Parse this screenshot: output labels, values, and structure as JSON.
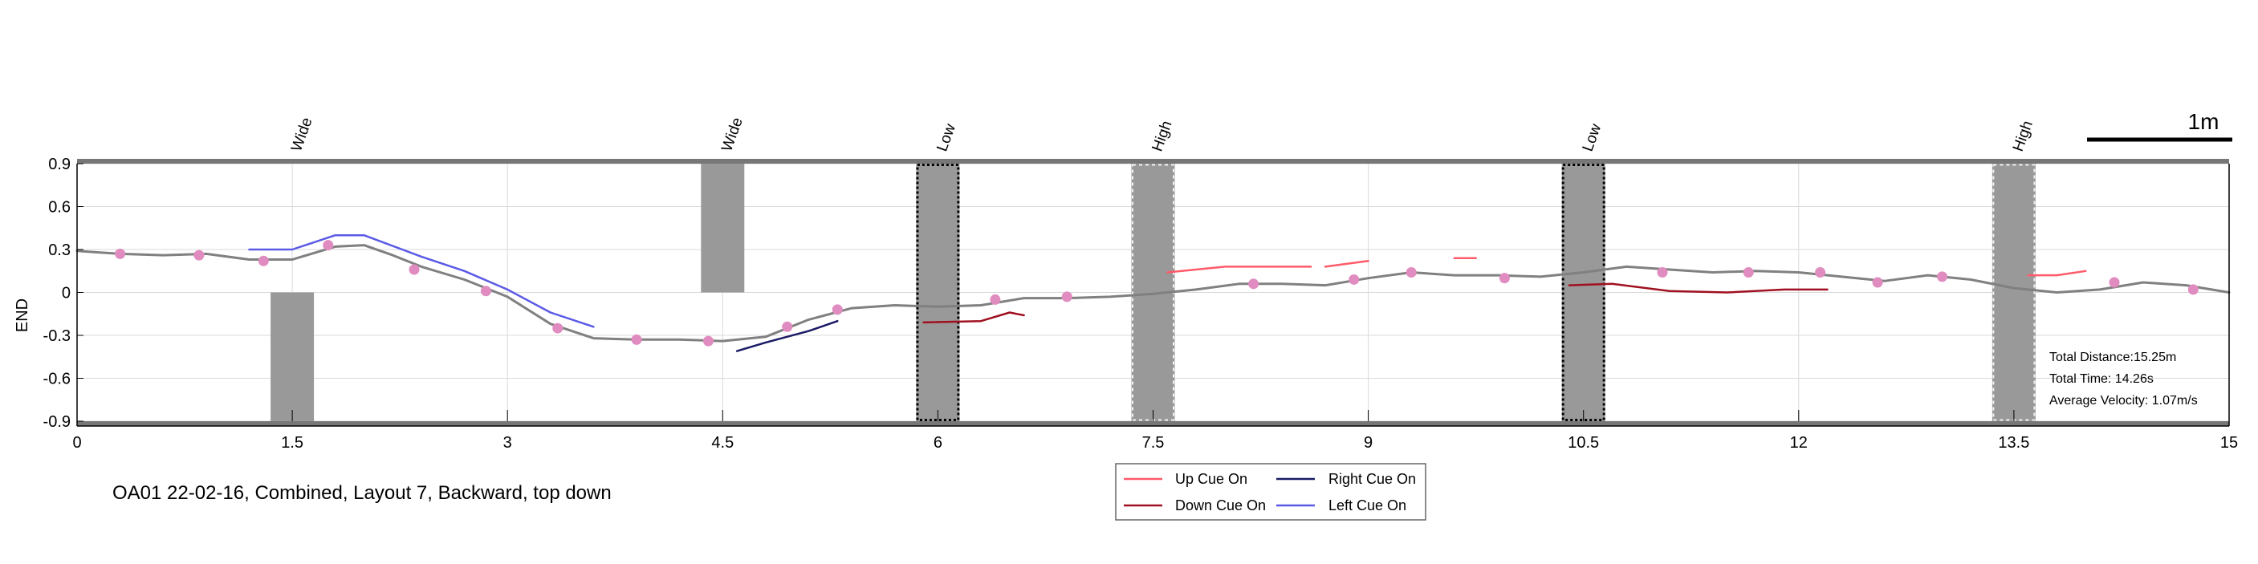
{
  "chart_data": {
    "type": "line",
    "ylabel": "END",
    "xlim": [
      0,
      15
    ],
    "ylim": [
      -0.9,
      0.9
    ],
    "xticks": [
      "0",
      "1.5",
      "3",
      "4.5",
      "6",
      "7.5",
      "9",
      "10.5",
      "12",
      "13.5",
      "15"
    ],
    "yticks": [
      "0.9",
      "0.6",
      "0.3",
      "0",
      "-0.3",
      "-0.6",
      "-0.9"
    ],
    "scale_bar_label": "1m",
    "caption": "OA01 22-02-16, Combined, Layout 7, Backward, top down",
    "stats": [
      "Total Distance:15.25m",
      "Total Time: 14.26s",
      "Average Velocity: 1.07m/s"
    ],
    "obstacles": [
      {
        "label": "Wide",
        "x": 1.5,
        "y0": -0.9,
        "y1": 0,
        "style": "solid"
      },
      {
        "label": "Wide",
        "x": 4.5,
        "y0": 0,
        "y1": 0.9,
        "style": "solid"
      },
      {
        "label": "Low",
        "x": 6.0,
        "y0": -0.9,
        "y1": 0.9,
        "style": "black-dotted"
      },
      {
        "label": "High",
        "x": 7.5,
        "y0": -0.9,
        "y1": 0.9,
        "style": "white-dashed"
      },
      {
        "label": "Low",
        "x": 10.5,
        "y0": -0.9,
        "y1": 0.9,
        "style": "black-dotted"
      },
      {
        "label": "High",
        "x": 13.5,
        "y0": -0.9,
        "y1": 0.9,
        "style": "white-dashed"
      }
    ],
    "series": [
      {
        "color": "#808080",
        "points": [
          [
            0,
            0.29
          ],
          [
            0.3,
            0.27
          ],
          [
            0.6,
            0.26
          ],
          [
            0.9,
            0.27
          ],
          [
            1.2,
            0.23
          ],
          [
            1.5,
            0.23
          ],
          [
            1.8,
            0.32
          ],
          [
            2.0,
            0.33
          ],
          [
            2.2,
            0.26
          ],
          [
            2.4,
            0.18
          ],
          [
            2.7,
            0.09
          ],
          [
            3.0,
            -0.03
          ],
          [
            3.3,
            -0.22
          ],
          [
            3.6,
            -0.32
          ],
          [
            3.9,
            -0.33
          ],
          [
            4.2,
            -0.33
          ],
          [
            4.5,
            -0.34
          ],
          [
            4.8,
            -0.31
          ],
          [
            5.1,
            -0.19
          ],
          [
            5.4,
            -0.11
          ],
          [
            5.7,
            -0.09
          ],
          [
            6.0,
            -0.1
          ],
          [
            6.3,
            -0.09
          ],
          [
            6.6,
            -0.04
          ],
          [
            6.9,
            -0.04
          ],
          [
            7.2,
            -0.03
          ],
          [
            7.5,
            -0.01
          ],
          [
            7.8,
            0.02
          ],
          [
            8.1,
            0.06
          ],
          [
            8.4,
            0.06
          ],
          [
            8.7,
            0.05
          ],
          [
            9.0,
            0.1
          ],
          [
            9.3,
            0.14
          ],
          [
            9.6,
            0.12
          ],
          [
            9.9,
            0.12
          ],
          [
            10.2,
            0.11
          ],
          [
            10.5,
            0.14
          ],
          [
            10.8,
            0.18
          ],
          [
            11.1,
            0.16
          ],
          [
            11.4,
            0.14
          ],
          [
            11.7,
            0.15
          ],
          [
            12.0,
            0.14
          ],
          [
            12.3,
            0.11
          ],
          [
            12.6,
            0.08
          ],
          [
            12.9,
            0.12
          ],
          [
            13.2,
            0.09
          ],
          [
            13.5,
            0.03
          ],
          [
            13.8,
            0.0
          ],
          [
            14.1,
            0.02
          ],
          [
            14.4,
            0.07
          ],
          [
            14.7,
            0.05
          ],
          [
            15.0,
            0.0
          ]
        ]
      },
      {
        "name": "Left Cue On",
        "color": "#5a5ae6",
        "points": [
          [
            1.2,
            0.3
          ],
          [
            1.5,
            0.3
          ],
          [
            1.8,
            0.4
          ],
          [
            2.0,
            0.4
          ],
          [
            2.4,
            0.25
          ],
          [
            2.7,
            0.15
          ],
          [
            3.0,
            0.02
          ],
          [
            3.3,
            -0.14
          ],
          [
            3.6,
            -0.24
          ]
        ]
      },
      {
        "name": "Right Cue On",
        "color": "#1a1a66",
        "points": [
          [
            4.6,
            -0.41
          ],
          [
            4.8,
            -0.35
          ],
          [
            5.1,
            -0.27
          ],
          [
            5.3,
            -0.2
          ]
        ]
      },
      {
        "name": "Down Cue On",
        "color": "#a01020",
        "points": [
          [
            5.9,
            -0.21
          ],
          [
            6.3,
            -0.2
          ],
          [
            6.5,
            -0.14
          ],
          [
            6.6,
            -0.16
          ]
        ]
      },
      {
        "name": "Down Cue On",
        "color": "#a01020",
        "points": [
          [
            10.4,
            0.05
          ],
          [
            10.7,
            0.06
          ],
          [
            11.1,
            0.01
          ],
          [
            11.5,
            0.0
          ],
          [
            11.9,
            0.02
          ],
          [
            12.2,
            0.02
          ]
        ]
      },
      {
        "name": "Up Cue On",
        "color": "#ff5a6a",
        "points": [
          [
            7.6,
            0.14
          ],
          [
            8.0,
            0.18
          ],
          [
            8.4,
            0.18
          ],
          [
            8.6,
            0.18
          ]
        ]
      },
      {
        "name": "Up Cue On",
        "color": "#ff5a6a",
        "points": [
          [
            8.7,
            0.18
          ],
          [
            9.0,
            0.22
          ]
        ]
      },
      {
        "name": "Up Cue On",
        "color": "#ff5a6a",
        "points": [
          [
            9.6,
            0.24
          ],
          [
            9.75,
            0.24
          ]
        ]
      },
      {
        "name": "Up Cue On",
        "color": "#ff5a6a",
        "points": [
          [
            13.6,
            0.12
          ],
          [
            13.8,
            0.12
          ],
          [
            14.0,
            0.15
          ]
        ]
      }
    ],
    "markers": [
      [
        0.3,
        0.27
      ],
      [
        0.85,
        0.26
      ],
      [
        1.3,
        0.22
      ],
      [
        1.75,
        0.33
      ],
      [
        2.35,
        0.16
      ],
      [
        2.85,
        0.01
      ],
      [
        3.35,
        -0.25
      ],
      [
        3.9,
        -0.33
      ],
      [
        4.4,
        -0.34
      ],
      [
        4.95,
        -0.24
      ],
      [
        5.3,
        -0.12
      ],
      [
        6.4,
        -0.05
      ],
      [
        6.9,
        -0.03
      ],
      [
        8.2,
        0.06
      ],
      [
        8.9,
        0.09
      ],
      [
        9.3,
        0.14
      ],
      [
        9.95,
        0.1
      ],
      [
        11.05,
        0.14
      ],
      [
        11.65,
        0.14
      ],
      [
        12.15,
        0.14
      ],
      [
        12.55,
        0.07
      ],
      [
        13.0,
        0.11
      ],
      [
        14.2,
        0.07
      ],
      [
        14.75,
        0.02
      ]
    ],
    "legend": [
      {
        "label": "Up Cue On",
        "color": "#ff5a6a"
      },
      {
        "label": "Right Cue On",
        "color": "#1a1a66"
      },
      {
        "label": "Down Cue On",
        "color": "#a01020"
      },
      {
        "label": "Left Cue On",
        "color": "#5a5ae6"
      }
    ],
    "colors": {
      "main": "#808080",
      "marker": "#e08cc0",
      "obstacle": "#999999"
    },
    "grid": true,
    "legend_position": "bottom"
  }
}
